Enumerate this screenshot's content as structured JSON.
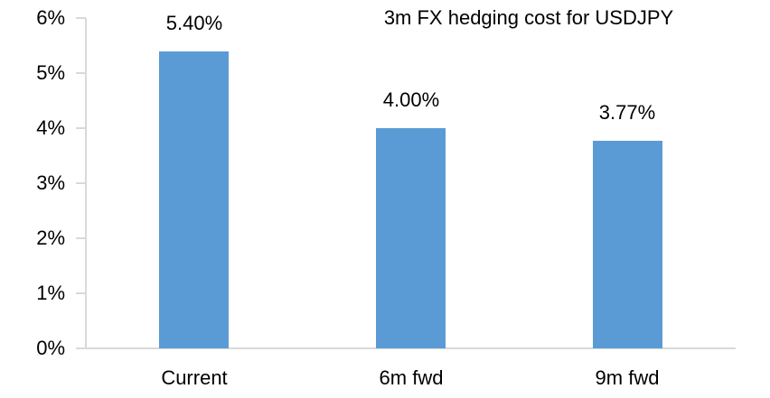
{
  "chart_data": {
    "type": "bar",
    "title": "3m FX hedging cost for USDJPY",
    "categories": [
      "Current",
      "6m fwd",
      "9m fwd"
    ],
    "values": [
      5.4,
      4.0,
      3.77
    ],
    "data_labels": [
      "5.40%",
      "4.00%",
      "3.77%"
    ],
    "xlabel": "",
    "ylabel": "",
    "ylim": [
      0,
      6
    ],
    "yticks": [
      0,
      1,
      2,
      3,
      4,
      5,
      6
    ],
    "ytick_labels": [
      "0%",
      "1%",
      "2%",
      "3%",
      "4%",
      "5%",
      "6%"
    ],
    "grid": false,
    "legend": null,
    "bar_color": "#5b9bd5",
    "axis_color": "#d9d9d9",
    "text_color": "#000000"
  }
}
